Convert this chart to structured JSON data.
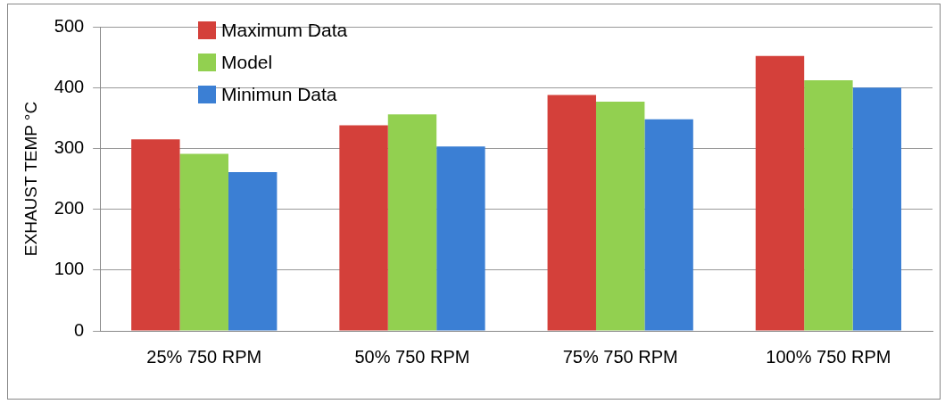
{
  "chart_data": {
    "type": "bar",
    "ylabel": "EXHAUST TEMP °C",
    "categories": [
      "25% 750 RPM",
      "50% 750 RPM",
      "75% 750 RPM",
      "100% 750 RPM"
    ],
    "series": [
      {
        "name": "Maximum Data",
        "color": "#d4403a",
        "values": [
          315,
          338,
          388,
          452
        ]
      },
      {
        "name": "Model",
        "color": "#92d050",
        "values": [
          291,
          356,
          377,
          412
        ]
      },
      {
        "name": "Minimun Data",
        "color": "#3b7fd4",
        "values": [
          261,
          303,
          348,
          400
        ]
      }
    ],
    "ylim": [
      0,
      500
    ],
    "yticks": [
      0,
      100,
      200,
      300,
      400,
      500
    ],
    "grid": "y",
    "legend": "top left"
  }
}
